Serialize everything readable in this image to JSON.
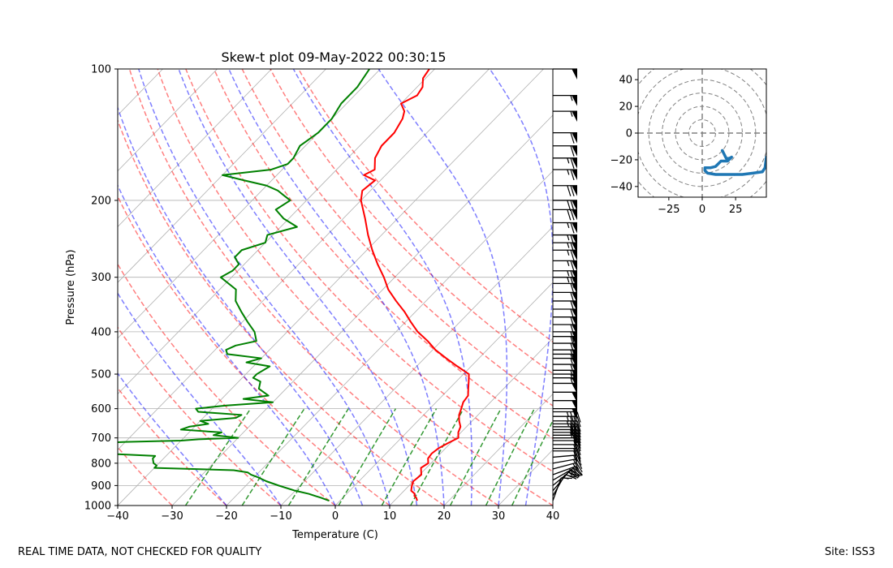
{
  "footer": {
    "left": "REAL TIME DATA, NOT CHECKED FOR QUALITY",
    "right": "Site: ISS3"
  },
  "chart_data": [
    {
      "type": "line",
      "name": "skew-t",
      "title": "Skew-t plot 09-May-2022 00:30:15",
      "xlabel": "Temperature (C)",
      "ylabel": "Pressure (hPa)",
      "xlim": [
        -40,
        40
      ],
      "ylim": [
        1000,
        100
      ],
      "x_ticks": [
        -40,
        -30,
        -20,
        -10,
        0,
        10,
        20,
        30,
        40
      ],
      "x_tick_labels": [
        "−40",
        "−30",
        "−20",
        "−10",
        "0",
        "10",
        "20",
        "30",
        "40"
      ],
      "p_ticks": [
        1000,
        900,
        800,
        700,
        600,
        500,
        400,
        300,
        200,
        100
      ],
      "p_tick_labels": [
        "1000",
        "900",
        "800",
        "700",
        "600",
        "500",
        "400",
        "300",
        "200",
        "100"
      ],
      "skew_deg_c_per_ln_p": 34,
      "isotherms": [
        -110,
        -100,
        -90,
        -80,
        -70,
        -60,
        -50,
        -40,
        -30,
        -20,
        -10,
        0,
        10,
        20,
        30,
        40
      ],
      "dry_adiabats_c": [
        -30,
        -20,
        -10,
        0,
        10,
        20,
        30,
        40,
        50,
        60,
        70,
        80,
        90
      ],
      "moist_adiabats_c": [
        -20,
        -10,
        0,
        5,
        10,
        15,
        20,
        25,
        30,
        35
      ],
      "mixing_ratio_g_kg": [
        0.4,
        1,
        2,
        4,
        7,
        10,
        16,
        24,
        32
      ],
      "mixing_ratio_top_hpa": 600,
      "series": [
        {
          "name": "Temperature",
          "color": "#ff0000",
          "pressure": [
            975,
            960,
            950,
            940,
            925,
            900,
            880,
            850,
            820,
            800,
            780,
            760,
            740,
            720,
            700,
            680,
            660,
            640,
            620,
            600,
            580,
            560,
            540,
            520,
            500,
            480,
            460,
            440,
            420,
            400,
            380,
            360,
            340,
            320,
            300,
            280,
            260,
            240,
            220,
            200,
            190,
            180,
            175,
            170,
            160,
            150,
            140,
            130,
            125,
            120,
            115,
            110,
            105,
            100
          ],
          "values": [
            14.2,
            13.5,
            12.8,
            12.5,
            11.3,
            10.5,
            10.0,
            10.3,
            9.0,
            9.5,
            8.6,
            8.4,
            8.7,
            9.5,
            10.5,
            9.5,
            8.9,
            7.6,
            6.5,
            5.8,
            5.0,
            4.7,
            3.5,
            2.3,
            1.0,
            -2.5,
            -6.0,
            -9.5,
            -12.5,
            -16.0,
            -19.0,
            -22.0,
            -25.5,
            -29.0,
            -32.0,
            -35.5,
            -39.0,
            -42.5,
            -46.0,
            -50.0,
            -51.5,
            -51.0,
            -54.0,
            -53.0,
            -55.0,
            -56.0,
            -56.0,
            -57.0,
            -58.0,
            -60.0,
            -58.5,
            -59.0,
            -60.5,
            -61.0
          ]
        },
        {
          "name": "Dewpoint",
          "color": "#008000",
          "pressure": [
            975,
            960,
            950,
            940,
            925,
            900,
            880,
            860,
            850,
            840,
            830,
            820,
            815,
            810,
            800,
            790,
            780,
            770,
            760,
            750,
            745,
            740,
            735,
            730,
            725,
            720,
            715,
            710,
            705,
            700,
            690,
            680,
            670,
            660,
            650,
            640,
            630,
            620,
            610,
            600,
            590,
            580,
            570,
            560,
            540,
            520,
            510,
            500,
            480,
            470,
            460,
            450,
            440,
            430,
            420,
            400,
            380,
            360,
            340,
            320,
            300,
            290,
            280,
            270,
            260,
            250,
            240,
            230,
            220,
            210,
            200,
            195,
            190,
            185,
            180,
            175,
            170,
            165,
            160,
            150,
            140,
            130,
            120,
            110,
            100
          ],
          "values": [
            -2.0,
            -4.0,
            -5.5,
            -7.0,
            -10.0,
            -14.0,
            -17.0,
            -19.5,
            -21.0,
            -22.0,
            -25.0,
            -40.0,
            -40.0,
            -40.0,
            -41.0,
            -41.5,
            -42.0,
            -42.0,
            -52.0,
            -60.0,
            -60.0,
            -60.0,
            -60.0,
            -60.0,
            -60.0,
            -55.0,
            -50.0,
            -40.0,
            -37.0,
            -30.0,
            -35.0,
            -34.0,
            -42.0,
            -41.0,
            -38.0,
            -40.0,
            -34.0,
            -33.5,
            -42.0,
            -43.0,
            -38.0,
            -30.0,
            -36.0,
            -32.0,
            -35.0,
            -36.0,
            -38.0,
            -38.0,
            -37.0,
            -42.0,
            -40.0,
            -47.0,
            -48.0,
            -47.0,
            -44.0,
            -46.0,
            -49.0,
            -52.0,
            -55.0,
            -57.0,
            -62.0,
            -61.0,
            -61.0,
            -63.0,
            -63.0,
            -60.0,
            -61.0,
            -57.0,
            -61.0,
            -64.0,
            -63.0,
            -65.0,
            -67.0,
            -70.0,
            -75.0,
            -80.0,
            -72.0,
            -70.0,
            -70.0,
            -71.0,
            -70.0,
            -70.0,
            -71.0,
            -71.0,
            -72.0
          ]
        }
      ],
      "wind_barbs": {
        "pressure": [
          975,
          950,
          925,
          900,
          875,
          850,
          825,
          800,
          775,
          750,
          740,
          725,
          710,
          700,
          690,
          680,
          670,
          660,
          650,
          640,
          625,
          610,
          600,
          575,
          550,
          525,
          510,
          500,
          490,
          475,
          460,
          450,
          440,
          425,
          410,
          400,
          385,
          370,
          355,
          340,
          325,
          310,
          300,
          290,
          275,
          260,
          250,
          240,
          225,
          210,
          200,
          185,
          170,
          160,
          150,
          140,
          125,
          115,
          100
        ],
        "speed_kt": [
          10,
          15,
          20,
          20,
          25,
          25,
          20,
          20,
          20,
          20,
          20,
          20,
          20,
          20,
          20,
          25,
          25,
          30,
          30,
          35,
          35,
          35,
          50,
          50,
          50,
          50,
          55,
          55,
          55,
          55,
          55,
          55,
          60,
          60,
          60,
          60,
          60,
          60,
          60,
          60,
          60,
          60,
          65,
          65,
          65,
          65,
          65,
          65,
          65,
          70,
          70,
          70,
          65,
          65,
          60,
          60,
          55,
          55,
          50
        ],
        "direction_deg": [
          200,
          210,
          220,
          230,
          240,
          250,
          255,
          260,
          265,
          270,
          270,
          270,
          270,
          270,
          270,
          270,
          270,
          270,
          270,
          270,
          270,
          270,
          270,
          270,
          270,
          270,
          270,
          270,
          270,
          270,
          270,
          270,
          270,
          270,
          270,
          270,
          270,
          270,
          270,
          270,
          270,
          270,
          270,
          270,
          270,
          270,
          270,
          270,
          270,
          270,
          270,
          270,
          270,
          270,
          270,
          270,
          270,
          270,
          270
        ]
      }
    },
    {
      "type": "line",
      "name": "hodograph",
      "xlim": [
        -48,
        48
      ],
      "ylim": [
        -48,
        48
      ],
      "x_ticks": [
        -25,
        0,
        25
      ],
      "x_tick_labels": [
        "−25",
        "0",
        "25"
      ],
      "y_ticks": [
        -40,
        -20,
        0,
        20,
        40
      ],
      "y_tick_labels": [
        "−40",
        "−20",
        "0",
        "20",
        "40"
      ],
      "ring_radii": [
        10,
        20,
        30,
        40,
        50,
        60
      ],
      "series": [
        {
          "name": "hodograph",
          "color": "#1f77b4",
          "u": [
            15,
            17,
            18,
            20,
            22,
            21,
            19,
            17,
            14,
            12,
            10,
            6,
            2,
            2,
            4,
            10,
            20,
            30,
            38,
            45,
            47,
            48
          ],
          "v": [
            -13,
            -17,
            -19,
            -19,
            -18,
            -19,
            -21,
            -21,
            -21,
            -23,
            -25,
            -26,
            -26,
            -28,
            -30,
            -31,
            -31,
            -31,
            -30,
            -29,
            -26,
            -18
          ]
        }
      ]
    }
  ]
}
